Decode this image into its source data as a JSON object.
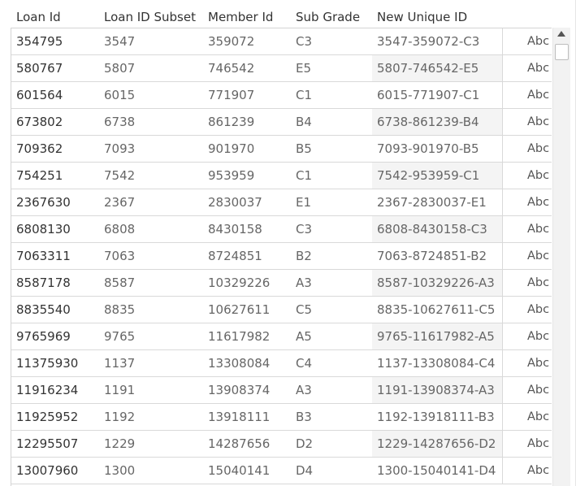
{
  "columns": {
    "loan_id": "Loan Id",
    "loan_id_subset": "Loan ID Subset",
    "member_id": "Member Id",
    "sub_grade": "Sub Grade",
    "new_unique_id": "New Unique ID"
  },
  "rows": [
    {
      "loan_id": "354795",
      "subset": "3547",
      "member_id": "359072",
      "sub_grade": "C3",
      "unique_id": "3547-359072-C3",
      "type": "Abc"
    },
    {
      "loan_id": "580767",
      "subset": "5807",
      "member_id": "746542",
      "sub_grade": "E5",
      "unique_id": "5807-746542-E5",
      "type": "Abc"
    },
    {
      "loan_id": "601564",
      "subset": "6015",
      "member_id": "771907",
      "sub_grade": "C1",
      "unique_id": "6015-771907-C1",
      "type": "Abc"
    },
    {
      "loan_id": "673802",
      "subset": "6738",
      "member_id": "861239",
      "sub_grade": "B4",
      "unique_id": "6738-861239-B4",
      "type": "Abc"
    },
    {
      "loan_id": "709362",
      "subset": "7093",
      "member_id": "901970",
      "sub_grade": "B5",
      "unique_id": "7093-901970-B5",
      "type": "Abc"
    },
    {
      "loan_id": "754251",
      "subset": "7542",
      "member_id": "953959",
      "sub_grade": "C1",
      "unique_id": "7542-953959-C1",
      "type": "Abc"
    },
    {
      "loan_id": "2367630",
      "subset": "2367",
      "member_id": "2830037",
      "sub_grade": "E1",
      "unique_id": "2367-2830037-E1",
      "type": "Abc"
    },
    {
      "loan_id": "6808130",
      "subset": "6808",
      "member_id": "8430158",
      "sub_grade": "C3",
      "unique_id": "6808-8430158-C3",
      "type": "Abc"
    },
    {
      "loan_id": "7063311",
      "subset": "7063",
      "member_id": "8724851",
      "sub_grade": "B2",
      "unique_id": "7063-8724851-B2",
      "type": "Abc"
    },
    {
      "loan_id": "8587178",
      "subset": "8587",
      "member_id": "10329226",
      "sub_grade": "A3",
      "unique_id": "8587-10329226-A3",
      "type": "Abc"
    },
    {
      "loan_id": "8835540",
      "subset": "8835",
      "member_id": "10627611",
      "sub_grade": "C5",
      "unique_id": "8835-10627611-C5",
      "type": "Abc"
    },
    {
      "loan_id": "9765969",
      "subset": "9765",
      "member_id": "11617982",
      "sub_grade": "A5",
      "unique_id": "9765-11617982-A5",
      "type": "Abc"
    },
    {
      "loan_id": "11375930",
      "subset": "1137",
      "member_id": "13308084",
      "sub_grade": "C4",
      "unique_id": "1137-13308084-C4",
      "type": "Abc"
    },
    {
      "loan_id": "11916234",
      "subset": "1191",
      "member_id": "13908374",
      "sub_grade": "A3",
      "unique_id": "1191-13908374-A3",
      "type": "Abc"
    },
    {
      "loan_id": "11925952",
      "subset": "1192",
      "member_id": "13918111",
      "sub_grade": "B3",
      "unique_id": "1192-13918111-B3",
      "type": "Abc"
    },
    {
      "loan_id": "12295507",
      "subset": "1229",
      "member_id": "14287656",
      "sub_grade": "D2",
      "unique_id": "1229-14287656-D2",
      "type": "Abc"
    },
    {
      "loan_id": "13007960",
      "subset": "1300",
      "member_id": "15040141",
      "sub_grade": "D4",
      "unique_id": "1300-15040141-D4",
      "type": "Abc"
    }
  ]
}
